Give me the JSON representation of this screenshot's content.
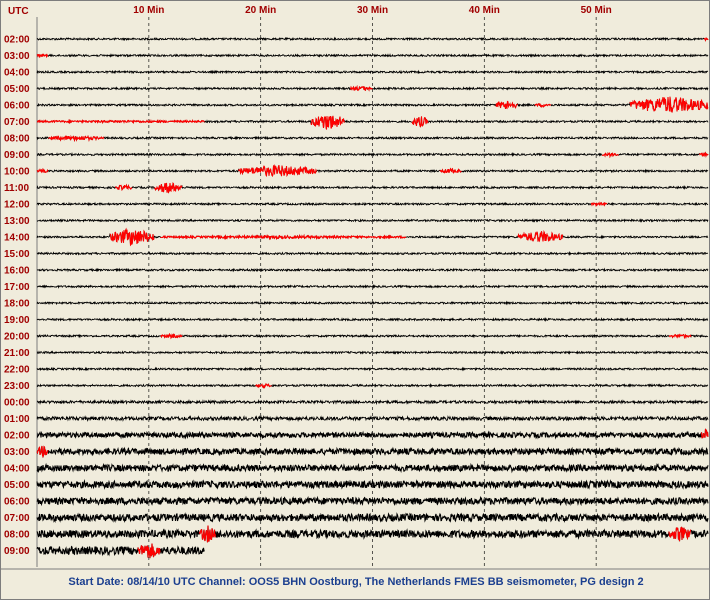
{
  "chart_data": {
    "type": "helicorder",
    "utc_label": "UTC",
    "x_ticks": [
      {
        "label": "10 Min",
        "value": 10
      },
      {
        "label": "20 Min",
        "value": 20
      },
      {
        "label": "30 Min",
        "value": 30
      },
      {
        "label": "40 Min",
        "value": 40
      },
      {
        "label": "50 Min",
        "value": 50
      }
    ],
    "xlim": [
      0,
      60
    ],
    "grid": "vertical dashed every 10 min",
    "rows": [
      {
        "label": "02:00",
        "amp": 0.9,
        "red": [
          [
            59.6,
            60,
            1.5
          ]
        ]
      },
      {
        "label": "03:00",
        "amp": 0.9,
        "red": [
          [
            0,
            1,
            1.5
          ]
        ]
      },
      {
        "label": "04:00",
        "amp": 0.9,
        "red": []
      },
      {
        "label": "05:00",
        "amp": 0.9,
        "red": [
          [
            28,
            30,
            2.5
          ]
        ]
      },
      {
        "label": "06:00",
        "amp": 0.9,
        "red": [
          [
            41,
            43,
            5
          ],
          [
            44.5,
            46,
            2
          ],
          [
            53,
            60,
            9
          ]
        ]
      },
      {
        "label": "07:00",
        "amp": 0.9,
        "red": [
          [
            0,
            15,
            1.2
          ],
          [
            24.5,
            27.5,
            9
          ],
          [
            33.5,
            35,
            6
          ]
        ]
      },
      {
        "label": "08:00",
        "amp": 0.9,
        "red": [
          [
            1,
            6,
            2.5
          ]
        ]
      },
      {
        "label": "09:00",
        "amp": 0.9,
        "red": [
          [
            50.5,
            52,
            2
          ],
          [
            59.2,
            60,
            2
          ]
        ]
      },
      {
        "label": "10:00",
        "amp": 0.9,
        "red": [
          [
            0,
            1,
            2
          ],
          [
            18,
            25,
            6
          ],
          [
            36,
            38,
            2.5
          ]
        ]
      },
      {
        "label": "11:00",
        "amp": 0.9,
        "red": [
          [
            7,
            8.5,
            3
          ],
          [
            10.5,
            13,
            6
          ]
        ]
      },
      {
        "label": "12:00",
        "amp": 0.9,
        "red": [
          [
            49.5,
            51,
            2
          ]
        ]
      },
      {
        "label": "13:00",
        "amp": 0.9,
        "red": []
      },
      {
        "label": "14:00",
        "amp": 0.9,
        "red": [
          [
            6.5,
            10.5,
            9
          ],
          [
            11,
            33,
            1.5
          ],
          [
            43,
            47,
            6
          ]
        ]
      },
      {
        "label": "15:00",
        "amp": 0.9,
        "red": []
      },
      {
        "label": "16:00",
        "amp": 0.9,
        "red": []
      },
      {
        "label": "17:00",
        "amp": 0.9,
        "red": []
      },
      {
        "label": "18:00",
        "amp": 0.9,
        "red": []
      },
      {
        "label": "19:00",
        "amp": 0.9,
        "red": []
      },
      {
        "label": "20:00",
        "amp": 0.9,
        "red": [
          [
            11,
            13,
            2
          ],
          [
            56.5,
            58.5,
            2
          ]
        ]
      },
      {
        "label": "21:00",
        "amp": 0.9,
        "red": []
      },
      {
        "label": "22:00",
        "amp": 0.9,
        "red": []
      },
      {
        "label": "23:00",
        "amp": 0.9,
        "red": [
          [
            19.5,
            21,
            2
          ]
        ]
      },
      {
        "label": "00:00",
        "amp": 1.3,
        "red": []
      },
      {
        "label": "01:00",
        "amp": 1.8,
        "red": []
      },
      {
        "label": "02:00",
        "amp": 2.5,
        "red": [
          [
            59.4,
            60,
            7
          ]
        ]
      },
      {
        "label": "03:00",
        "amp": 3.0,
        "red": [
          [
            0,
            1,
            6
          ]
        ]
      },
      {
        "label": "04:00",
        "amp": 3.2,
        "red": []
      },
      {
        "label": "05:00",
        "amp": 3.4,
        "red": []
      },
      {
        "label": "06:00",
        "amp": 3.4,
        "red": []
      },
      {
        "label": "07:00",
        "amp": 3.6,
        "red": []
      },
      {
        "label": "08:00",
        "amp": 3.8,
        "red": [
          [
            14.5,
            16,
            9
          ],
          [
            56.5,
            58.5,
            8
          ]
        ]
      },
      {
        "label": "09:00",
        "amp": 4.0,
        "red": [
          [
            9,
            11,
            9
          ]
        ],
        "end": 15
      }
    ]
  },
  "caption": "Start Date: 08/14/10 UTC Channel: OOS5  BHN  Oostburg, The Netherlands  FMES BB seismometer, PG design 2",
  "colors": {
    "background": "#f0ecdc",
    "trace": "#000000",
    "event": "#ff0000",
    "labels": "#a00000",
    "caption": "#1b3f8f",
    "grid": "#000000"
  }
}
